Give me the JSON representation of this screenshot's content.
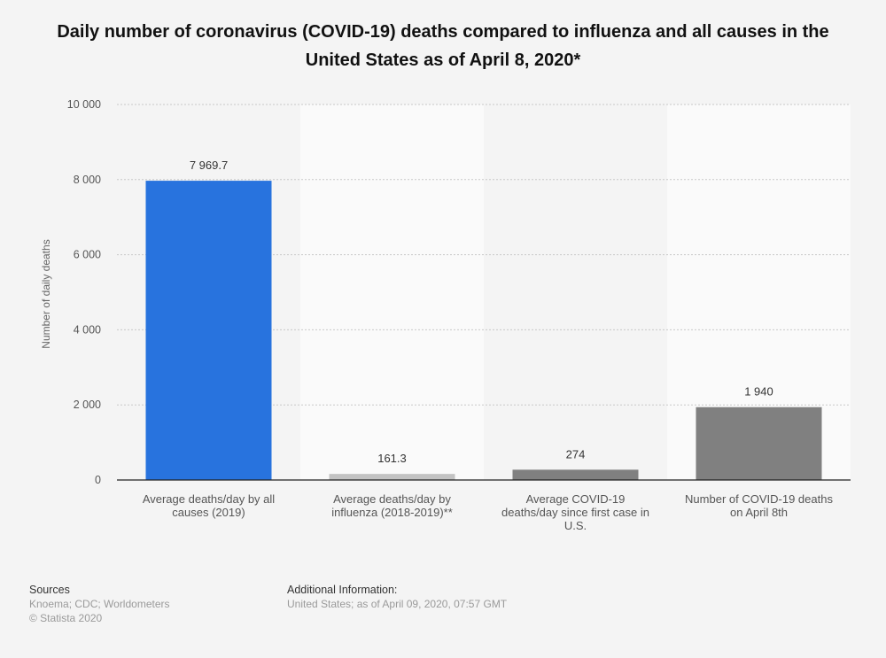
{
  "title": "Daily number of coronavirus (COVID-19) deaths compared to influenza and all causes in the United States as of April 8, 2020*",
  "footer": {
    "sources_label": "Sources",
    "sources_text": "Knoema; CDC; Worldometers",
    "copyright": "© Statista 2020",
    "additional_label": "Additional Information:",
    "additional_text": "United States; as of April 09, 2020, 07:57 GMT"
  },
  "colors": {
    "highlight": "#2873de",
    "primary": "#808080",
    "secondary": "#c3c3c3"
  },
  "chart_data": {
    "type": "bar",
    "title": "Daily number of coronavirus (COVID-19) deaths compared to influenza and all causes in the United States as of April 8, 2020*",
    "ylabel": "Number of daily deaths",
    "xlabel": "",
    "ylim": [
      0,
      10000
    ],
    "yticks": [
      0,
      2000,
      4000,
      6000,
      8000,
      10000
    ],
    "ytick_labels": [
      "0",
      "2 000",
      "4 000",
      "6 000",
      "8 000",
      "10 000"
    ],
    "grid": true,
    "categories": [
      [
        "Average deaths/day by all",
        "causes (2019)"
      ],
      [
        "Average deaths/day by",
        "influenza (2018-2019)**"
      ],
      [
        "Average COVID-19",
        "deaths/day since first case in",
        "U.S."
      ],
      [
        "Number of COVID-19 deaths",
        "on April 8th"
      ]
    ],
    "values": [
      7969.7,
      161.3,
      274,
      1940
    ],
    "value_labels": [
      "7 969.7",
      "161.3",
      "274",
      "1 940"
    ],
    "bar_colors": [
      "#2873de",
      "#c3c3c3",
      "#808080",
      "#808080"
    ]
  }
}
